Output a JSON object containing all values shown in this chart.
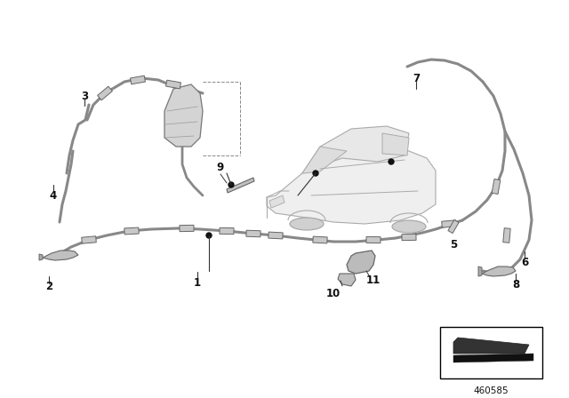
{
  "bg_color": "#ffffff",
  "diagram_num": "460585",
  "hose_color": "#888888",
  "car_color": "#cccccc",
  "car_edge": "#aaaaaa",
  "label_color": "#111111",
  "dot_color": "#333333",
  "res_color": "#bbbbbb",
  "res_edge": "#777777"
}
